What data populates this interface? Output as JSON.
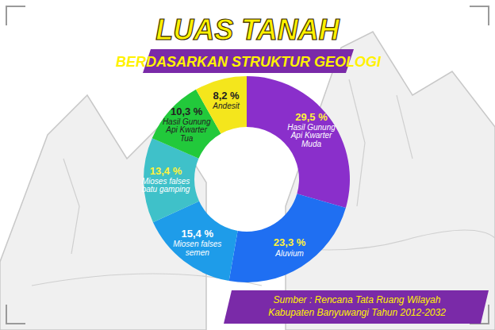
{
  "chart_data": {
    "type": "pie",
    "title": "LUAS TANAH",
    "subtitle": "BERDASARKAN STRUKTUR GEOLOGI",
    "categories": [
      "Hasil Gunung Api Kwarter Muda",
      "Aluvium",
      "Miosen falses semen",
      "Mioses falses batu gamping",
      "Hasil Gunung Api Kwarter Tua",
      "Andesit"
    ],
    "values": [
      29.5,
      23.3,
      15.4,
      13.4,
      10.3,
      8.2
    ],
    "value_labels": [
      "29,5 %",
      "23,3 %",
      "15,4 %",
      "13,4 %",
      "10,3 %",
      "8,2 %"
    ],
    "colors": [
      "#8a2fcb",
      "#1f6ff2",
      "#1e9ce9",
      "#3fc1c9",
      "#22c93b",
      "#f4e61c"
    ],
    "data_labels": true,
    "source": [
      "Sumber : Rencana Tata Ruang Wilayah",
      "Kabupaten Banyuwangi Tahun 2012-2032"
    ]
  }
}
